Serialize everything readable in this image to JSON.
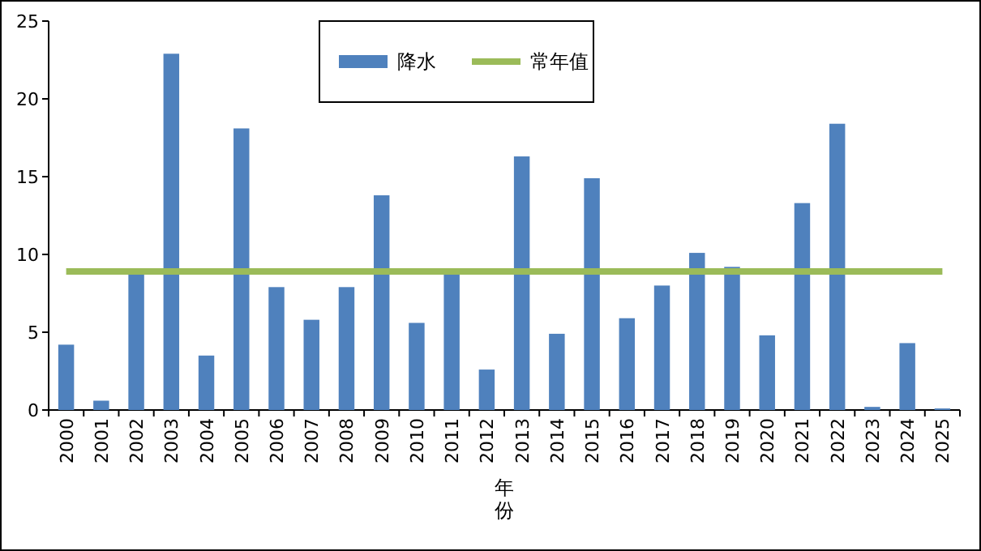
{
  "chart_data": {
    "type": "bar",
    "xlabel": "年份",
    "categories": [
      "2000",
      "2001",
      "2002",
      "2003",
      "2004",
      "2005",
      "2006",
      "2007",
      "2008",
      "2009",
      "2010",
      "2011",
      "2012",
      "2013",
      "2014",
      "2015",
      "2016",
      "2017",
      "2018",
      "2019",
      "2020",
      "2021",
      "2022",
      "2023",
      "2024",
      "2025"
    ],
    "series": [
      {
        "name": "降水",
        "color": "#4f81bd",
        "values": [
          4.2,
          0.6,
          8.8,
          22.9,
          3.5,
          18.1,
          7.9,
          5.8,
          7.9,
          13.8,
          5.6,
          8.8,
          2.6,
          16.3,
          4.9,
          14.9,
          5.9,
          8.0,
          10.1,
          9.2,
          4.8,
          13.3,
          18.4,
          0.2,
          4.3,
          0.1
        ]
      },
      {
        "name": "常年值",
        "type": "line",
        "color": "#9bbb59",
        "values": [
          8.9,
          8.9,
          8.9,
          8.9,
          8.9,
          8.9,
          8.9,
          8.9,
          8.9,
          8.9,
          8.9,
          8.9,
          8.9,
          8.9,
          8.9,
          8.9,
          8.9,
          8.9,
          8.9,
          8.9,
          8.9,
          8.9,
          8.9,
          8.9,
          8.9,
          8.9
        ]
      }
    ],
    "ylim": [
      0,
      25
    ],
    "yticks": [
      0,
      5,
      10,
      15,
      20,
      25
    ],
    "grid": false,
    "legend": "top",
    "marker": "none"
  }
}
